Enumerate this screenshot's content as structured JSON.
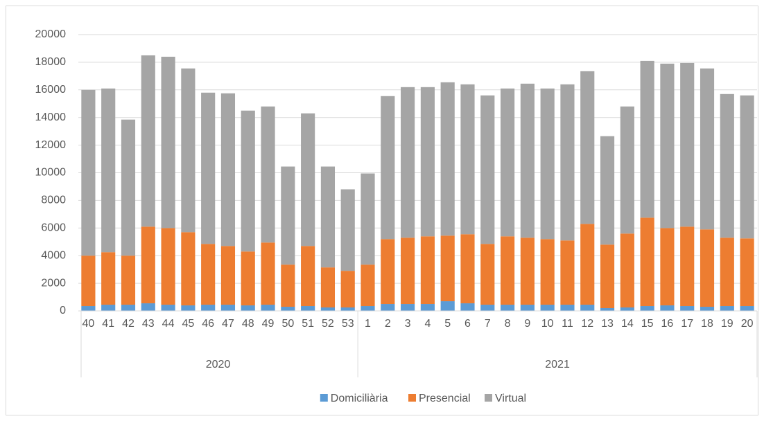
{
  "chart_data": {
    "type": "stacked_bar",
    "categories": [
      "40",
      "41",
      "42",
      "43",
      "44",
      "45",
      "46",
      "47",
      "48",
      "49",
      "50",
      "51",
      "52",
      "53",
      "1",
      "2",
      "3",
      "4",
      "5",
      "6",
      "7",
      "8",
      "9",
      "10",
      "11",
      "12",
      "13",
      "14",
      "15",
      "16",
      "17",
      "18",
      "19",
      "20"
    ],
    "category_groups": [
      {
        "label": "2020",
        "size": 14
      },
      {
        "label": "2021",
        "size": 20
      }
    ],
    "series": [
      {
        "name": "Domiciliària",
        "color": "#5b9bd5",
        "values": [
          350,
          450,
          450,
          550,
          450,
          400,
          450,
          450,
          400,
          450,
          300,
          350,
          250,
          250,
          350,
          500,
          500,
          500,
          700,
          550,
          450,
          450,
          450,
          450,
          450,
          450,
          200,
          250,
          350,
          400,
          350,
          300,
          350,
          350
        ]
      },
      {
        "name": "Presencial",
        "color": "#ed7d31",
        "values": [
          3650,
          3800,
          3550,
          5550,
          5550,
          5300,
          4400,
          4250,
          3900,
          4500,
          3050,
          4350,
          2900,
          2650,
          3000,
          4700,
          4800,
          4900,
          4750,
          5000,
          4400,
          4950,
          4850,
          4750,
          4650,
          5850,
          4600,
          5350,
          6400,
          5600,
          5750,
          5600,
          4950,
          4900
        ]
      },
      {
        "name": "Virtual",
        "color": "#a5a5a5",
        "values": [
          12000,
          11850,
          9850,
          12400,
          12400,
          11850,
          10950,
          11050,
          10200,
          9850,
          7100,
          9600,
          7300,
          5900,
          6600,
          10350,
          10900,
          10800,
          11100,
          10850,
          10750,
          10700,
          11150,
          10900,
          11300,
          11050,
          7850,
          9200,
          11350,
          11900,
          11850,
          11650,
          10400,
          10350
        ]
      }
    ],
    "ylim": [
      0,
      20000
    ],
    "yticks": [
      0,
      2000,
      4000,
      6000,
      8000,
      10000,
      12000,
      14000,
      16000,
      18000,
      20000
    ],
    "grid": true,
    "legend": "bottom"
  }
}
